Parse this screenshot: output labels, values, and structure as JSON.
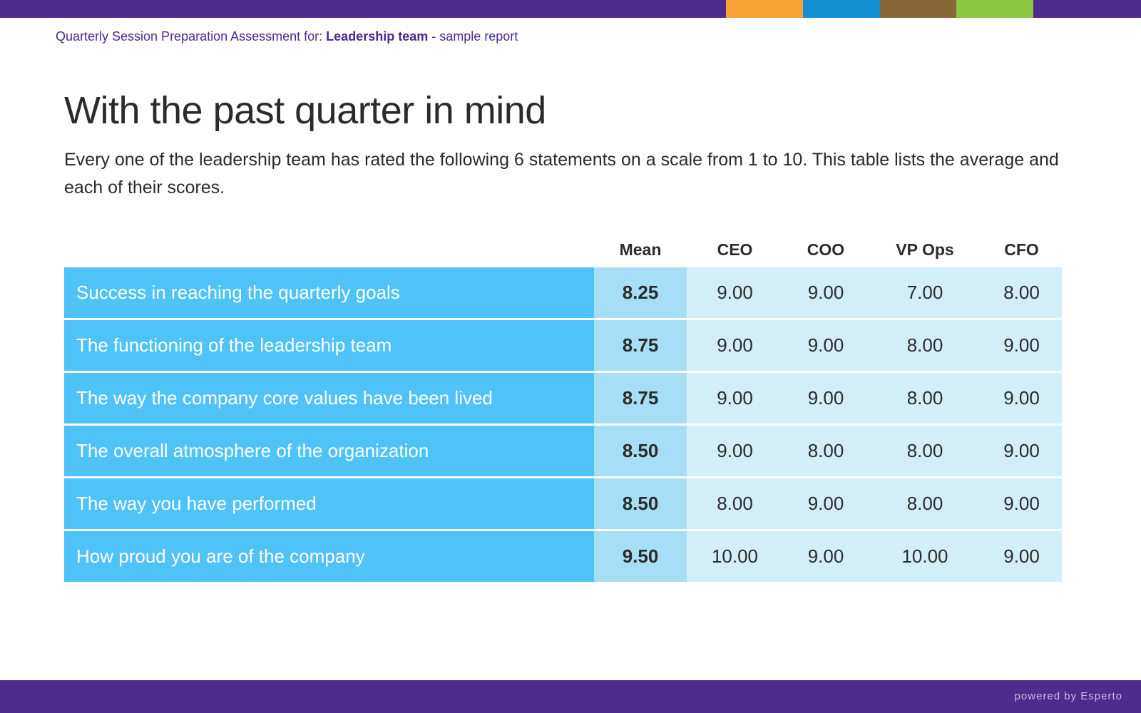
{
  "colors": {
    "topbar": [
      "#4e2b8c",
      "#f7a336",
      "#1490d2",
      "#87673a",
      "#8cc63f",
      "#4e2b8c"
    ],
    "statement_bg": "#4fc3f7",
    "mean_bg": "#a5def5",
    "score_bg": "#d2eef9",
    "footer": "#4e2b8c"
  },
  "header": {
    "prefix": "Quarterly Session Preparation Assessment for: ",
    "team": "Leadership team",
    "suffix": " - sample report"
  },
  "title": "With the past quarter in mind",
  "intro": "Every one of the leadership team has rated the following 6 statements on a scale from 1 to 10. This table lists the average and each of their scores.",
  "table": {
    "columns": [
      "Mean",
      "CEO",
      "COO",
      "VP Ops",
      "CFO"
    ],
    "rows": [
      {
        "statement": "Success in reaching the quarterly goals",
        "mean": "8.25",
        "scores": [
          "9.00",
          "9.00",
          "7.00",
          "8.00"
        ]
      },
      {
        "statement": "The functioning of the leadership team",
        "mean": "8.75",
        "scores": [
          "9.00",
          "9.00",
          "8.00",
          "9.00"
        ]
      },
      {
        "statement": "The way the company core values have been lived",
        "mean": "8.75",
        "scores": [
          "9.00",
          "9.00",
          "8.00",
          "9.00"
        ]
      },
      {
        "statement": "The overall atmosphere of the organization",
        "mean": "8.50",
        "scores": [
          "9.00",
          "8.00",
          "8.00",
          "9.00"
        ]
      },
      {
        "statement": "The way you have performed",
        "mean": "8.50",
        "scores": [
          "8.00",
          "9.00",
          "8.00",
          "9.00"
        ]
      },
      {
        "statement": "How proud you are of the company",
        "mean": "9.50",
        "scores": [
          "10.00",
          "9.00",
          "10.00",
          "9.00"
        ]
      }
    ]
  },
  "footer": {
    "powered_by": "powered by Esperto"
  }
}
